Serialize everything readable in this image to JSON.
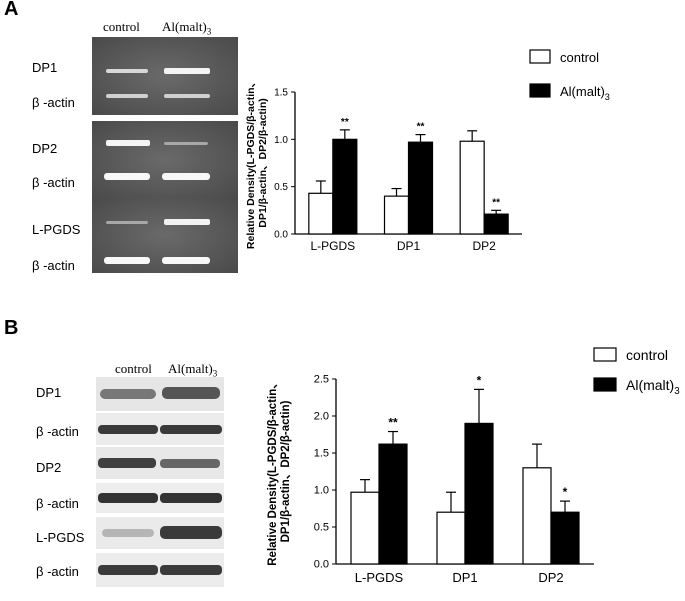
{
  "panel_a": {
    "letter": "A",
    "gel_columns": [
      "control",
      "Al(malt)",
      "3"
    ],
    "row_labels": [
      "DP1",
      "β -actin",
      "DP2",
      "β -actin",
      "L-PGDS",
      "β -actin"
    ]
  },
  "panel_b": {
    "letter": "B",
    "blot_columns": [
      "control",
      "Al(malt)",
      "3"
    ],
    "row_labels": [
      "DP1",
      "β -actin",
      "DP2",
      "β -actin",
      "L-PGDS",
      "β -actin"
    ]
  },
  "chart_data": [
    {
      "type": "bar",
      "panel": "A",
      "categories": [
        "L-PGDS",
        "DP1",
        "DP2"
      ],
      "series": [
        {
          "name": "control",
          "values": [
            0.43,
            0.4,
            0.98
          ],
          "errors": [
            0.13,
            0.08,
            0.11
          ],
          "color": "#ffffff"
        },
        {
          "name": "Al(malt)3",
          "values": [
            1.0,
            0.97,
            0.21
          ],
          "errors": [
            0.1,
            0.08,
            0.04
          ],
          "color": "#000000"
        }
      ],
      "significance": [
        [
          "",
          "**"
        ],
        [
          "",
          "**"
        ],
        [
          "",
          "**"
        ]
      ],
      "ylabel_lines": [
        "Relative Density(L-PGDS/β-actin、",
        "DP1/β-actin、DP2/β-actin)"
      ],
      "yticks": [
        "0.0",
        "0.5",
        "1.0",
        "1.5"
      ],
      "ylim": [
        0,
        1.5
      ],
      "legend": {
        "entries": [
          "control",
          "Al(malt)"
        ],
        "subscript": "3",
        "placement": "top-right"
      }
    },
    {
      "type": "bar",
      "panel": "B",
      "categories": [
        "L-PGDS",
        "DP1",
        "DP2"
      ],
      "series": [
        {
          "name": "control",
          "values": [
            0.97,
            0.7,
            1.3
          ],
          "errors": [
            0.17,
            0.27,
            0.32
          ],
          "color": "#ffffff"
        },
        {
          "name": "Al(malt)3",
          "values": [
            1.62,
            1.9,
            0.7
          ],
          "errors": [
            0.17,
            0.46,
            0.15
          ],
          "color": "#000000"
        }
      ],
      "significance": [
        [
          "",
          "**"
        ],
        [
          "",
          "*"
        ],
        [
          "",
          "*"
        ]
      ],
      "ylabel_lines": [
        "Relative Density(L-PGDS/β-actin、",
        "DP1/β-actin、DP2/β-actin)"
      ],
      "yticks": [
        "0.0",
        "0.5",
        "1.0",
        "1.5",
        "2.0",
        "2.5"
      ],
      "ylim": [
        0,
        2.5
      ],
      "legend": {
        "entries": [
          "control",
          "Al(malt)"
        ],
        "subscript": "3",
        "placement": "top-right"
      }
    }
  ]
}
